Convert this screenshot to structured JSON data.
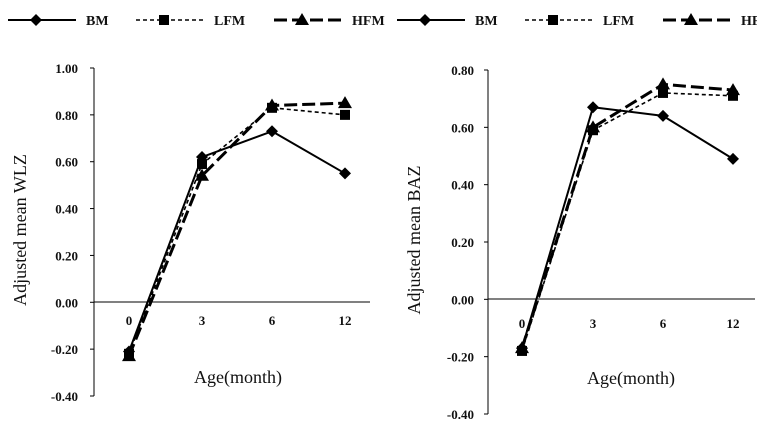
{
  "chart_data": [
    {
      "type": "line",
      "title": "",
      "xlabel": "Age(month)",
      "ylabel": "Adjusted mean WLZ",
      "categories": [
        "0",
        "3",
        "6",
        "12"
      ],
      "ylim": [
        -0.4,
        1.0
      ],
      "yticks": [
        "1.00",
        "0.80",
        "0.60",
        "0.40",
        "0.20",
        "0.00",
        "-0.20",
        "-0.40"
      ],
      "grid": false,
      "legend_position": "top",
      "series": [
        {
          "name": "BM",
          "values": [
            -0.21,
            0.62,
            0.73,
            0.55
          ]
        },
        {
          "name": "LFM",
          "values": [
            -0.22,
            0.59,
            0.83,
            0.8
          ]
        },
        {
          "name": "HFM",
          "values": [
            -0.23,
            0.54,
            0.84,
            0.85
          ]
        }
      ]
    },
    {
      "type": "line",
      "title": "",
      "xlabel": "Age(month)",
      "ylabel": "Adjusted mean BAZ",
      "categories": [
        "0",
        "3",
        "6",
        "12"
      ],
      "ylim": [
        -0.4,
        0.8
      ],
      "yticks": [
        "0.80",
        "0.60",
        "0.40",
        "0.20",
        "0.00",
        "-0.20",
        "-0.40"
      ],
      "grid": false,
      "legend_position": "top",
      "series": [
        {
          "name": "BM",
          "values": [
            -0.17,
            0.67,
            0.64,
            0.49
          ]
        },
        {
          "name": "LFM",
          "values": [
            -0.18,
            0.59,
            0.72,
            0.71
          ]
        },
        {
          "name": "HFM",
          "values": [
            -0.17,
            0.6,
            0.75,
            0.73
          ]
        }
      ]
    }
  ]
}
